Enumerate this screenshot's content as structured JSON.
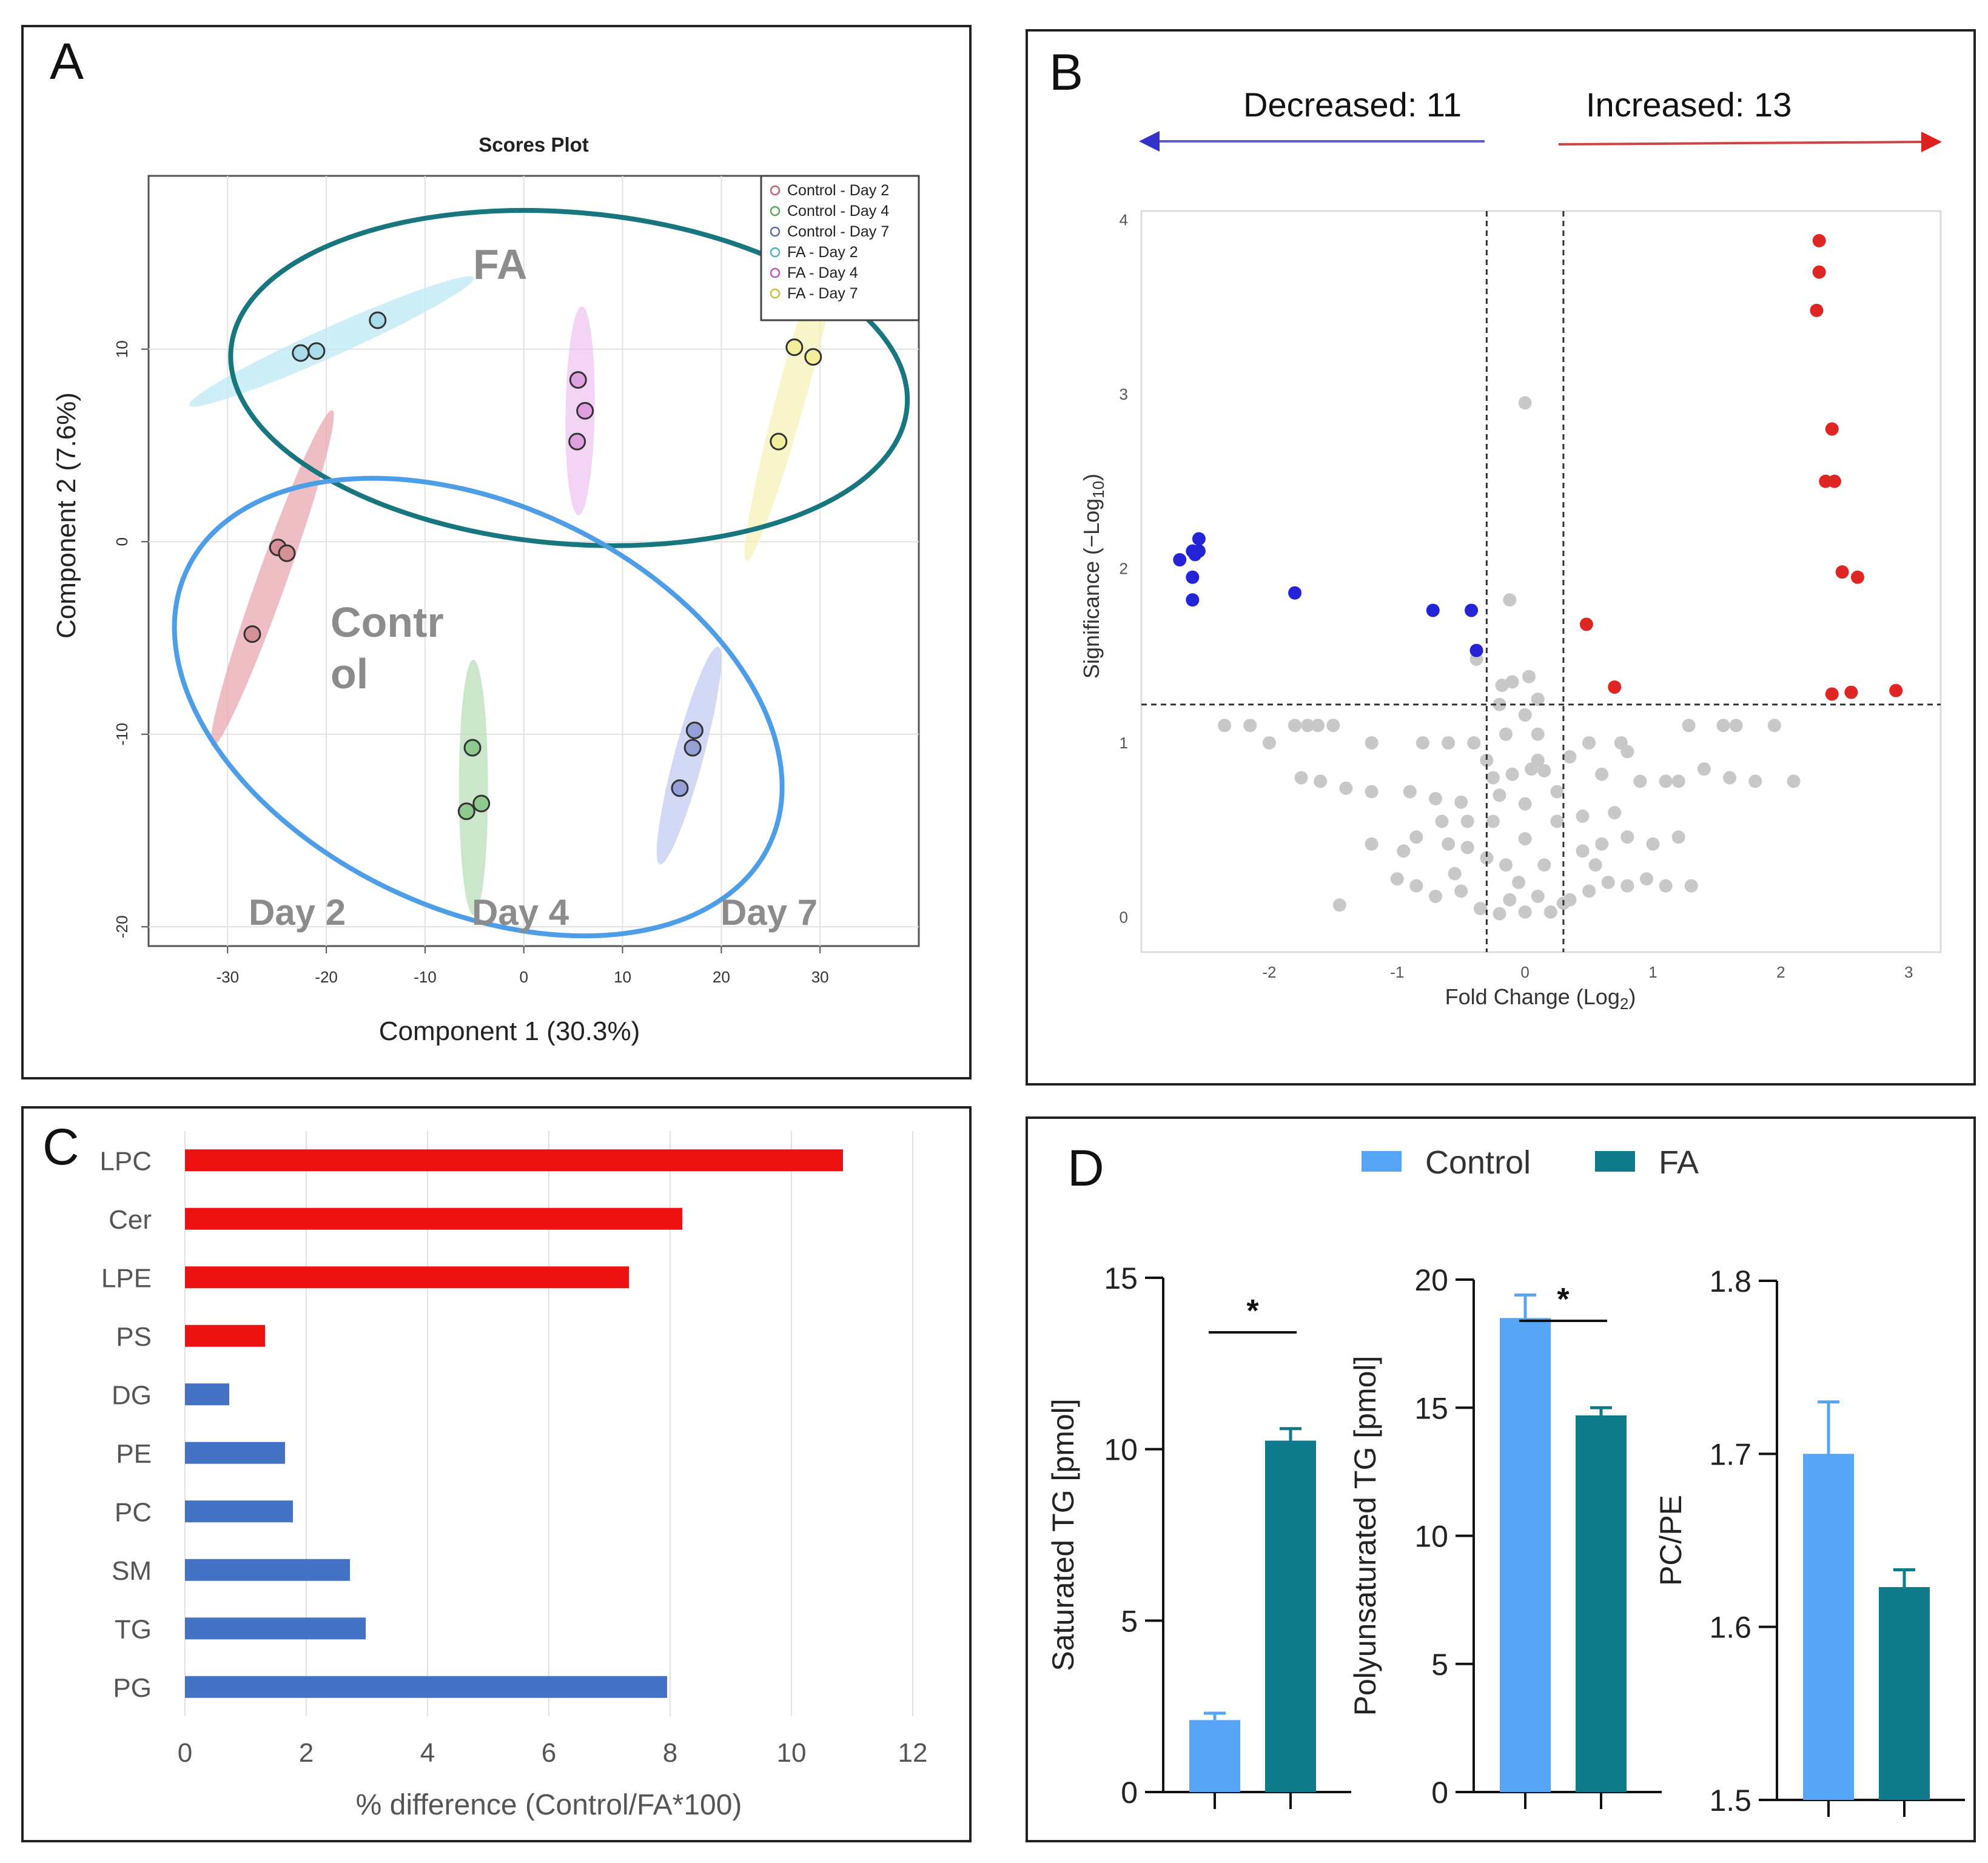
{
  "panels": {
    "A": {
      "letter": "A",
      "chart_data": {
        "type": "scatter",
        "title": "Scores Plot",
        "xlabel": "Component 1 (30.3%)",
        "ylabel": "Component 2 (7.6%)",
        "xlim": [
          -38,
          40
        ],
        "ylim": [
          -21,
          19
        ],
        "xticks": [
          -30,
          -20,
          -10,
          0,
          10,
          20,
          30
        ],
        "yticks": [
          -20,
          -10,
          0,
          10
        ],
        "tick_labels_x": [
          "-30",
          "-20",
          "-10",
          "0",
          "10",
          "20",
          "30"
        ],
        "tick_labels_y": [
          "-20",
          "-10",
          "0",
          "10"
        ],
        "grid": true,
        "legend_position": "top-right",
        "series": [
          {
            "name": "Control - Day 2",
            "color": "#c2606a",
            "fill": "#d69098",
            "ellipse": "#e8a8b0",
            "points": [
              {
                "x": -24.9,
                "y": -0.3
              },
              {
                "x": -24,
                "y": -0.6
              },
              {
                "x": -27.5,
                "y": -4.8
              }
            ]
          },
          {
            "name": "Control - Day 4",
            "color": "#5aa65a",
            "fill": "#8fc98f",
            "ellipse": "#b9deb9",
            "points": [
              {
                "x": -5.2,
                "y": -10.7
              },
              {
                "x": -5.8,
                "y": -14
              },
              {
                "x": -4.3,
                "y": -13.6
              }
            ]
          },
          {
            "name": "Control - Day 7",
            "color": "#5a68b0",
            "fill": "#95a0d8",
            "ellipse": "#c4ccf0",
            "points": [
              {
                "x": 17.3,
                "y": -9.8
              },
              {
                "x": 17.1,
                "y": -10.7
              },
              {
                "x": 15.8,
                "y": -12.8
              }
            ]
          },
          {
            "name": "FA - Day 2",
            "color": "#4ab0cc",
            "fill": "#a8dcec",
            "ellipse": "#bfe9f6",
            "points": [
              {
                "x": -22.6,
                "y": 9.8
              },
              {
                "x": -21,
                "y": 9.9
              },
              {
                "x": -14.8,
                "y": 11.5
              }
            ]
          },
          {
            "name": "FA - Day 4",
            "color": "#c050c0",
            "fill": "#e0a0e0",
            "ellipse": "#f0c6f0",
            "points": [
              {
                "x": 5.5,
                "y": 8.4
              },
              {
                "x": 6.2,
                "y": 6.8
              },
              {
                "x": 5.4,
                "y": 5.2
              }
            ]
          },
          {
            "name": "FA - Day 7",
            "color": "#c8c040",
            "fill": "#f2ee9c",
            "ellipse": "#f7f1b8",
            "points": [
              {
                "x": 27.4,
                "y": 10.1
              },
              {
                "x": 29.3,
                "y": 9.6
              },
              {
                "x": 25.8,
                "y": 5.2
              }
            ]
          }
        ],
        "group_ellipses": [
          {
            "label": "FA",
            "color": "#17767e"
          },
          {
            "label": "Control",
            "color": "#4d9ee6"
          }
        ],
        "annotations": {
          "fa": "FA",
          "control_line1": "Contr",
          "control_line2": "ol",
          "day2": "Day 2",
          "day4": "Day 4",
          "day7": "Day 7"
        }
      }
    },
    "B": {
      "letter": "B",
      "decreased_label": "Decreased: 11",
      "increased_label": "Increased: 13",
      "chart_data": {
        "type": "scatter",
        "title": "",
        "xlabel": "Fold Change (Log",
        "xlabel_sub": "2",
        "xlabel_end": ")",
        "ylabel": "Significance (−Log",
        "ylabel_sub": "10",
        "ylabel_end": ")",
        "xlim": [
          -3,
          3.25
        ],
        "ylim": [
          -0.2,
          4.05
        ],
        "xticks": [
          -2,
          -1,
          0,
          1,
          2,
          3
        ],
        "yticks": [
          0,
          1,
          2,
          3,
          4
        ],
        "tick_labels_x": [
          "-2",
          "-1",
          "0",
          "1",
          "2",
          "3"
        ],
        "tick_labels_y": [
          "0",
          "1",
          "2",
          "3",
          "4"
        ],
        "thresholds": {
          "fc_low": -0.3,
          "fc_high": 0.3,
          "p": 1.22
        },
        "decreased": [
          [
            -2.7,
            2.05
          ],
          [
            -2.6,
            2.1
          ],
          [
            -2.55,
            2.17
          ],
          [
            -2.58,
            2.08
          ],
          [
            -2.6,
            1.95
          ],
          [
            -2.6,
            1.82
          ],
          [
            -1.8,
            1.86
          ],
          [
            -0.72,
            1.76
          ],
          [
            -0.42,
            1.76
          ],
          [
            -0.38,
            1.53
          ],
          [
            -2.55,
            2.1
          ]
        ],
        "increased": [
          [
            2.3,
            3.88
          ],
          [
            2.3,
            3.7
          ],
          [
            2.28,
            3.48
          ],
          [
            2.4,
            2.8
          ],
          [
            2.35,
            2.5
          ],
          [
            2.42,
            2.5
          ],
          [
            2.48,
            1.98
          ],
          [
            2.6,
            1.95
          ],
          [
            0.48,
            1.68
          ],
          [
            0.7,
            1.32
          ],
          [
            2.4,
            1.28
          ],
          [
            2.55,
            1.29
          ],
          [
            2.9,
            1.3
          ]
        ],
        "not_significant": [
          [
            0.0,
            2.95
          ],
          [
            -0.12,
            1.82
          ],
          [
            -0.38,
            1.48
          ],
          [
            -0.1,
            1.35
          ],
          [
            0.03,
            1.38
          ],
          [
            -0.18,
            1.33
          ],
          [
            0.0,
            1.16
          ],
          [
            -2.15,
            1.1
          ],
          [
            -2.35,
            1.1
          ],
          [
            -1.8,
            1.1
          ],
          [
            -1.7,
            1.1
          ],
          [
            -1.62,
            1.1
          ],
          [
            -1.5,
            1.1
          ],
          [
            -0.8,
            1.0
          ],
          [
            -0.6,
            1.0
          ],
          [
            -0.4,
            1.0
          ],
          [
            -1.2,
            1.0
          ],
          [
            -2.0,
            1.0
          ],
          [
            1.28,
            1.1
          ],
          [
            1.55,
            1.1
          ],
          [
            1.65,
            1.1
          ],
          [
            1.95,
            1.1
          ],
          [
            0.5,
            1.0
          ],
          [
            0.75,
            1.0
          ],
          [
            0.8,
            0.95
          ],
          [
            1.4,
            0.85
          ],
          [
            1.6,
            0.8
          ],
          [
            1.8,
            0.78
          ],
          [
            2.1,
            0.78
          ],
          [
            0.6,
            0.82
          ],
          [
            0.9,
            0.78
          ],
          [
            1.1,
            0.78
          ],
          [
            1.2,
            0.78
          ],
          [
            -1.75,
            0.8
          ],
          [
            -1.6,
            0.78
          ],
          [
            -1.4,
            0.74
          ],
          [
            -1.2,
            0.72
          ],
          [
            -0.9,
            0.72
          ],
          [
            -0.7,
            0.68
          ],
          [
            -0.5,
            0.66
          ],
          [
            -0.25,
            0.8
          ],
          [
            -0.1,
            0.82
          ],
          [
            0.05,
            0.85
          ],
          [
            0.15,
            0.84
          ],
          [
            -1.2,
            0.42
          ],
          [
            -0.95,
            0.38
          ],
          [
            -0.85,
            0.46
          ],
          [
            -0.6,
            0.42
          ],
          [
            -0.45,
            0.4
          ],
          [
            -0.3,
            0.34
          ],
          [
            0.45,
            0.38
          ],
          [
            0.6,
            0.42
          ],
          [
            0.8,
            0.46
          ],
          [
            1.0,
            0.42
          ],
          [
            1.2,
            0.46
          ],
          [
            1.1,
            0.18
          ],
          [
            0.95,
            0.22
          ],
          [
            0.8,
            0.18
          ],
          [
            0.65,
            0.2
          ],
          [
            0.5,
            0.15
          ],
          [
            0.35,
            0.1
          ],
          [
            -0.5,
            0.15
          ],
          [
            -0.7,
            0.12
          ],
          [
            -0.85,
            0.18
          ],
          [
            -1.0,
            0.22
          ],
          [
            -1.45,
            0.07
          ],
          [
            -0.35,
            0.05
          ],
          [
            -0.2,
            0.02
          ],
          [
            0.0,
            0.03
          ],
          [
            0.2,
            0.03
          ],
          [
            0.3,
            0.08
          ],
          [
            -0.25,
            0.55
          ],
          [
            0.25,
            0.55
          ],
          [
            -0.15,
            0.3
          ],
          [
            0.15,
            0.3
          ],
          [
            0.0,
            0.45
          ],
          [
            0.0,
            0.65
          ],
          [
            -0.2,
            0.7
          ],
          [
            0.25,
            0.72
          ],
          [
            0.1,
            0.9
          ],
          [
            -0.3,
            0.9
          ],
          [
            0.35,
            0.92
          ],
          [
            -0.45,
            0.55
          ],
          [
            0.45,
            0.58
          ],
          [
            -0.05,
            0.2
          ],
          [
            0.1,
            0.12
          ],
          [
            -0.12,
            0.1
          ],
          [
            1.3,
            0.18
          ],
          [
            -0.15,
            1.05
          ],
          [
            0.1,
            1.05
          ],
          [
            -0.2,
            1.22
          ],
          [
            0.1,
            1.25
          ],
          [
            -0.55,
            0.25
          ],
          [
            0.55,
            0.3
          ],
          [
            -0.65,
            0.55
          ],
          [
            0.7,
            0.6
          ]
        ]
      }
    },
    "C": {
      "letter": "C",
      "chart_data": {
        "type": "bar",
        "orientation": "horizontal",
        "title": "",
        "xlabel": "% difference (Control/FA*100)",
        "ylabel": "",
        "xlim": [
          0,
          12
        ],
        "xticks": [
          0,
          2,
          4,
          6,
          8,
          10,
          12
        ],
        "tick_labels_x": [
          "0",
          "2",
          "4",
          "6",
          "8",
          "10",
          "12"
        ],
        "categories": [
          "LPC",
          "Cer",
          "LPE",
          "PS",
          "DG",
          "PE",
          "PC",
          "SM",
          "TG",
          "PG"
        ],
        "values": [
          10.85,
          8.2,
          7.32,
          1.32,
          0.73,
          1.65,
          1.78,
          2.72,
          2.98,
          7.95
        ],
        "colors": [
          "#ee1111",
          "#ee1111",
          "#ee1111",
          "#ee1111",
          "#4472c4",
          "#4472c4",
          "#4472c4",
          "#4472c4",
          "#4472c4",
          "#4472c4"
        ]
      }
    },
    "D": {
      "letter": "D",
      "legend": [
        {
          "label": "Control",
          "color": "#56a4f6"
        },
        {
          "label": "FA",
          "color": "#0f7a8a"
        }
      ],
      "chart_data": [
        {
          "type": "bar",
          "ylabel": "Saturated TG [pmol]",
          "ylim": [
            0,
            15
          ],
          "yticks": [
            0,
            5,
            10,
            15
          ],
          "tick_labels_y": [
            "0",
            "5",
            "10",
            "15"
          ],
          "categories": [
            "Control",
            "FA"
          ],
          "values": [
            2.1,
            10.25
          ],
          "errors": [
            0.2,
            0.35
          ],
          "significance": "*"
        },
        {
          "type": "bar",
          "ylabel": "Polyunsaturated TG  [pmol]",
          "ylim": [
            0,
            20
          ],
          "yticks": [
            0,
            5,
            10,
            15,
            20
          ],
          "tick_labels_y": [
            "0",
            "5",
            "10",
            "15",
            "20"
          ],
          "categories": [
            "Control",
            "FA"
          ],
          "values": [
            18.5,
            14.7
          ],
          "errors": [
            0.9,
            0.3
          ],
          "significance": "*"
        },
        {
          "type": "bar",
          "ylabel": "PC/PE",
          "ylim": [
            1.5,
            1.8
          ],
          "yticks": [
            1.5,
            1.6,
            1.7,
            1.8
          ],
          "tick_labels_y": [
            "1.5",
            "1.6",
            "1.7",
            "1.8"
          ],
          "categories": [
            "Control",
            "FA"
          ],
          "values": [
            1.7,
            1.623
          ],
          "errors": [
            0.03,
            0.01
          ],
          "significance": ""
        }
      ]
    }
  }
}
